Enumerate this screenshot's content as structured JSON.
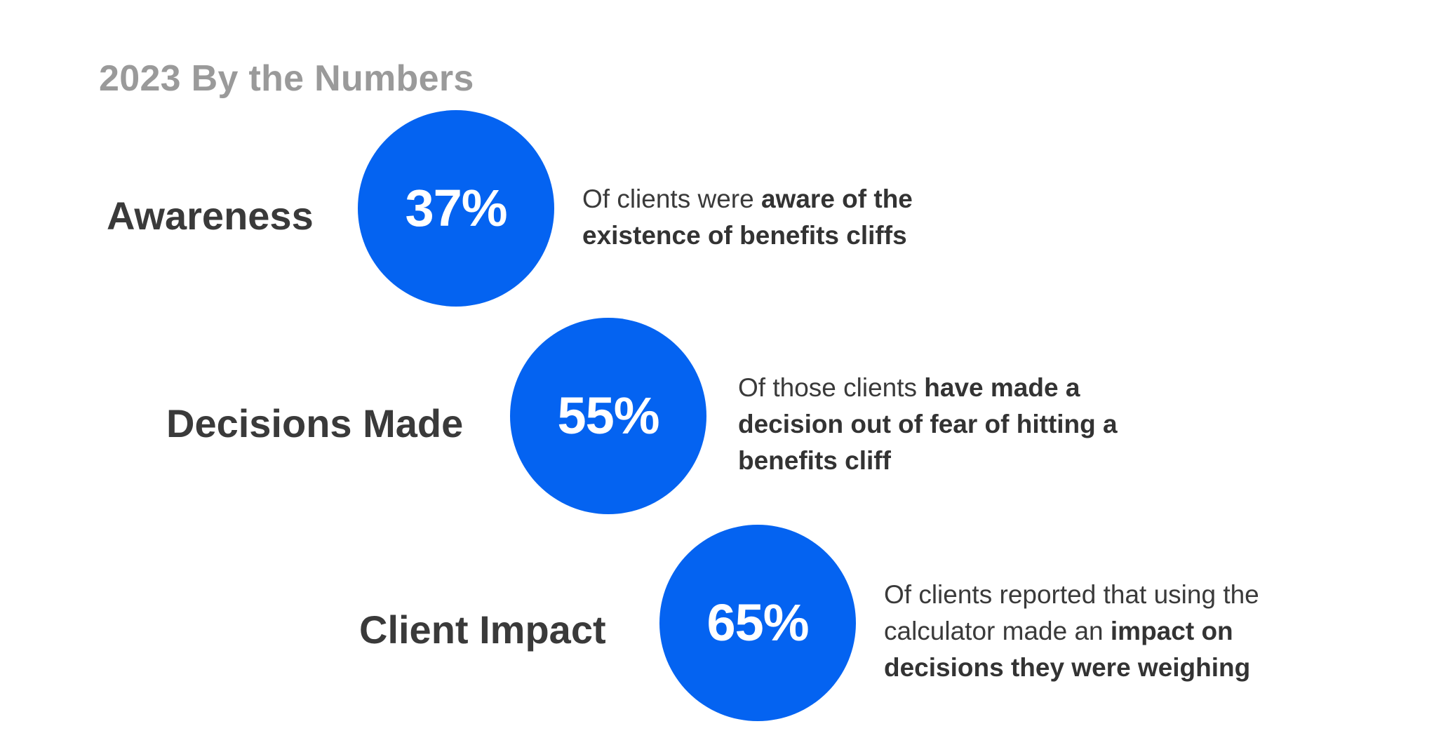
{
  "title": "2023 By the Numbers",
  "accent_color": "#0463f1",
  "rows": [
    {
      "label": "Awareness",
      "value": "37%",
      "desc_plain": "Of clients were ",
      "desc_bold": "aware of the existence of benefits cliffs"
    },
    {
      "label": "Decisions Made",
      "value": "55%",
      "desc_plain": "Of those clients ",
      "desc_bold": "have made a decision out of fear of hitting a benefits cliff"
    },
    {
      "label": "Client Impact",
      "value": "65%",
      "desc_plain": "Of clients reported that using the calculator made an ",
      "desc_bold": "impact on decisions they were weighing"
    }
  ]
}
